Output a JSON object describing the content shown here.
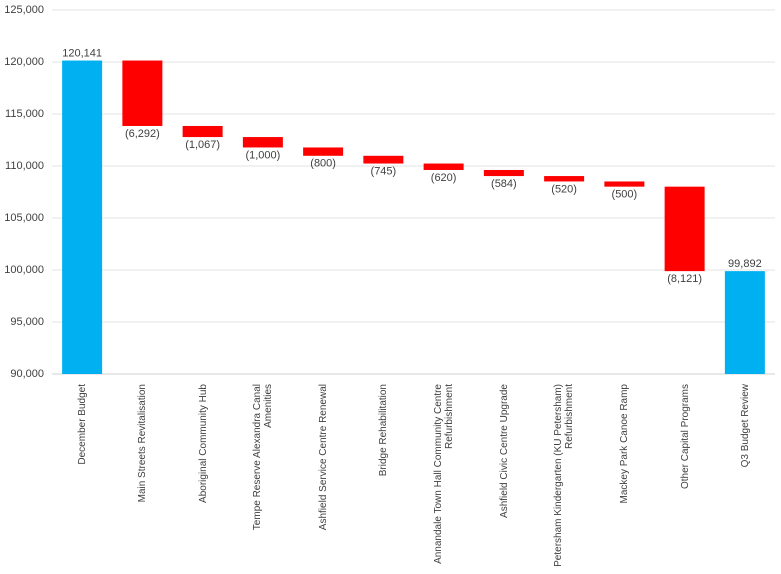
{
  "chart_data": {
    "type": "waterfall",
    "categories": [
      "December Budget",
      "Main Streets Revitalisation",
      "Aboriginal Community Hub",
      "Tempe Reserve Alexandra Canal Amenities",
      "Ashfield Service Centre Renewal",
      "Bridge Rehabilitation",
      "Annandale Town Hall  Community Centre Refurbishment",
      "Ashfield Civic Centre Upgrade",
      "Petersham Kindergarten (KU Petersham) Refurbishment",
      "Mackey Park Canoe Ramp",
      "Other Capital Programs",
      "Q3 Budget Review"
    ],
    "values": [
      120141,
      -6292,
      -1067,
      -1000,
      -800,
      -745,
      -620,
      -584,
      -520,
      -500,
      -8121,
      99892
    ],
    "value_labels": [
      "120,141",
      "(6,292)",
      "(1,067)",
      "(1,000)",
      "(800)",
      "(745)",
      "(620)",
      "(584)",
      "(520)",
      "(500)",
      "(8,121)",
      "99,892"
    ],
    "measure": [
      "absolute",
      "relative",
      "relative",
      "relative",
      "relative",
      "relative",
      "relative",
      "relative",
      "relative",
      "relative",
      "relative",
      "absolute"
    ],
    "total_color": "#00b0f0",
    "decrease_color": "#ff0000",
    "ylim": [
      90000,
      125000
    ],
    "yticks": [
      {
        "value": 90000,
        "label": "90,000"
      },
      {
        "value": 95000,
        "label": "95,000"
      },
      {
        "value": 100000,
        "label": "100,000"
      },
      {
        "value": 105000,
        "label": "105,000"
      },
      {
        "value": 110000,
        "label": "110,000"
      },
      {
        "value": 115000,
        "label": "115,000"
      },
      {
        "value": 120000,
        "label": "120,000"
      },
      {
        "value": 125000,
        "label": "125,000"
      }
    ],
    "grid": true
  }
}
